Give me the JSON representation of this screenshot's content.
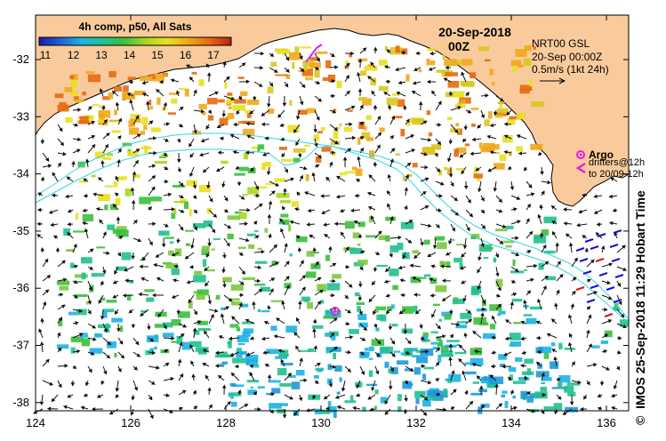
{
  "title": {
    "date": "20-Sep-2018",
    "time": "00Z"
  },
  "colorbar": {
    "caption": "4h comp, p50, All Sats",
    "ticks": [
      "11",
      "12",
      "13",
      "14",
      "15",
      "16",
      "17"
    ],
    "stops": [
      "#1a1aa8",
      "#1c63d8",
      "#19b3e6",
      "#20c090",
      "#3cbf3c",
      "#a8d820",
      "#e8e020",
      "#f0a818",
      "#e66a10",
      "#b82010"
    ]
  },
  "current_legend": {
    "line1": "NRT00 GSL",
    "line2": "20-Sep 00:00Z",
    "line3": "0.5m/s (1kt 24h)"
  },
  "argo_legend": {
    "label": "Argo",
    "line1": "drifters@12h",
    "line2": "to 20/09-12h",
    "argo_color": "#e020e0",
    "drifter_color": "#e020e0"
  },
  "axes": {
    "x_ticks": [
      "124",
      "126",
      "128",
      "130",
      "132",
      "134",
      "136"
    ],
    "y_ticks": [
      "-32",
      "-33",
      "-34",
      "-35",
      "-36",
      "-37",
      "-38"
    ]
  },
  "credit": "IMOS 25-Sep-2018 11:29 Hobart Time",
  "copyright": "©",
  "colors": {
    "land": "#f9cb9c",
    "bathymetry": "#33d6e6",
    "vectors": "#111111"
  }
}
